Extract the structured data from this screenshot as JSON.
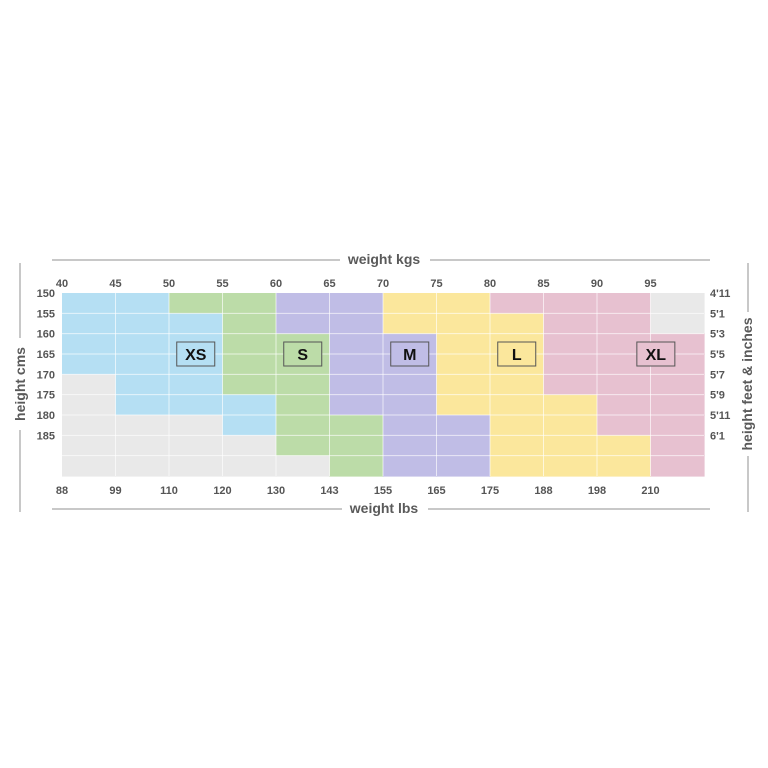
{
  "chart_data": {
    "type": "heatmap",
    "title": "",
    "top_axis_title": "weight kgs",
    "bottom_axis_title": "weight lbs",
    "left_axis_title": "height cms",
    "right_axis_title": "height feet & inches",
    "kg_ticks": [
      "40",
      "45",
      "50",
      "55",
      "60",
      "65",
      "70",
      "75",
      "80",
      "85",
      "90",
      "95"
    ],
    "lbs_ticks": [
      "88",
      "99",
      "110",
      "120",
      "130",
      "143",
      "155",
      "165",
      "175",
      "188",
      "198",
      "210"
    ],
    "cm_ticks": [
      "150",
      "155",
      "160",
      "165",
      "170",
      "175",
      "180",
      "185"
    ],
    "feet_ticks": [
      "4'11",
      "5'1",
      "5'3",
      "5'5",
      "5'7",
      "5'9",
      "5'11",
      "6'1"
    ],
    "sizes": [
      {
        "name": "XS",
        "label_col": 2,
        "label_row": 3
      },
      {
        "name": "S",
        "label_col": 4,
        "label_row": 3
      },
      {
        "name": "M",
        "label_col": 6,
        "label_row": 3
      },
      {
        "name": "L",
        "label_col": 8,
        "label_row": 3
      },
      {
        "name": "XL",
        "label_col": 10.6,
        "label_row": 3
      }
    ],
    "colors": {
      "XS": "#b5dff3",
      "S": "#bcdca8",
      "M": "#c0bde6",
      "L": "#fbe79c",
      "XL": "#e7c1d0",
      "none": "#e9e9e9"
    },
    "grid": [
      [
        "XS",
        "XS",
        "S",
        "S",
        "M",
        "M",
        "L",
        "L",
        "XL",
        "XL",
        "XL",
        "none"
      ],
      [
        "XS",
        "XS",
        "XS",
        "S",
        "M",
        "M",
        "L",
        "L",
        "L",
        "XL",
        "XL",
        "none"
      ],
      [
        "XS",
        "XS",
        "XS",
        "S",
        "S",
        "M",
        "M",
        "L",
        "L",
        "XL",
        "XL",
        "XL"
      ],
      [
        "XS",
        "XS",
        "XS",
        "S",
        "S",
        "M",
        "M",
        "L",
        "L",
        "XL",
        "XL",
        "XL"
      ],
      [
        "none",
        "XS",
        "XS",
        "S",
        "S",
        "M",
        "M",
        "L",
        "L",
        "XL",
        "XL",
        "XL"
      ],
      [
        "none",
        "XS",
        "XS",
        "XS",
        "S",
        "M",
        "M",
        "L",
        "L",
        "L",
        "XL",
        "XL"
      ],
      [
        "none",
        "none",
        "none",
        "XS",
        "S",
        "S",
        "M",
        "M",
        "L",
        "L",
        "XL",
        "XL"
      ],
      [
        "none",
        "none",
        "none",
        "none",
        "S",
        "S",
        "M",
        "M",
        "L",
        "L",
        "L",
        "XL"
      ],
      [
        "none",
        "none",
        "none",
        "none",
        "none",
        "S",
        "M",
        "M",
        "L",
        "L",
        "L",
        "XL"
      ]
    ]
  }
}
